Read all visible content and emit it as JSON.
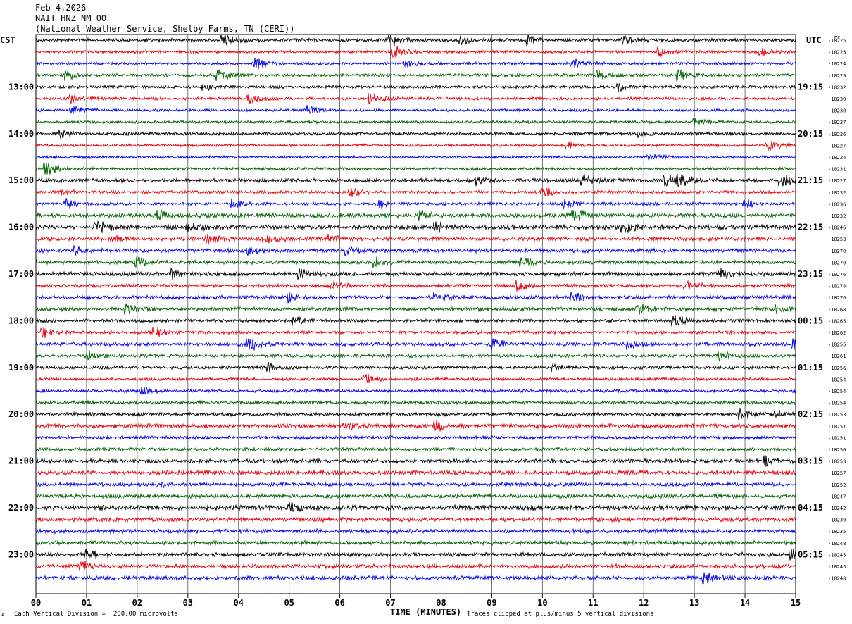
{
  "header": {
    "date": "Feb 4,2026",
    "station": "NAIT HNZ NM 00",
    "network": "(National Weather Service, Shelby Farms, TN (CERI))"
  },
  "corner": {
    "left": "CST",
    "right": "UTC",
    "dc": "DC"
  },
  "footer": {
    "scale_note": "Each Vertical Division =  200.00 microvolts",
    "xlabel": "TIME (MINUTES)",
    "clip_note": "Traces clipped at plus/minus 5 vertical divisions",
    "mark": "A"
  },
  "chart_data": {
    "type": "line",
    "title": "NAIT HNZ NM 00",
    "xlabel": "TIME (MINUTES)",
    "x_ticks": [
      "00",
      "01",
      "02",
      "03",
      "04",
      "05",
      "06",
      "07",
      "08",
      "09",
      "10",
      "11",
      "12",
      "13",
      "14",
      "15"
    ],
    "xlim": [
      0,
      15
    ],
    "trace_colors": [
      "#000000",
      "#e8000b",
      "#0000f0",
      "#006400"
    ],
    "left_time_labels": [
      "13:00",
      "14:00",
      "15:00",
      "16:00",
      "17:00",
      "18:00",
      "19:00",
      "20:00",
      "21:00",
      "22:00",
      "23:00"
    ],
    "right_time_labels": [
      "19:15",
      "20:15",
      "21:15",
      "22:15",
      "23:15",
      "00:15",
      "01:15",
      "02:15",
      "03:15",
      "04:15",
      "05:15"
    ],
    "hour_label_every_n_traces": 4,
    "first_hour_label_trace_index": 4,
    "dc_offsets": [
      "-10225",
      "-10225",
      "-10224",
      "-10229",
      "-10232",
      "-10230",
      "-10230",
      "-10227",
      "-10226",
      "-10227",
      "-10224",
      "-10231",
      "-10227",
      "-10232",
      "-10236",
      "-10232",
      "-10246",
      "-10253",
      "-10270",
      "-10270",
      "-10276",
      "-10278",
      "-10276",
      "-10268",
      "-10265",
      "-10262",
      "-10255",
      "-10261",
      "-10256",
      "-10254",
      "-10254",
      "-10254",
      "-10253",
      "-10251",
      "-10251",
      "-10250",
      "-10253",
      "-10257",
      "-10252",
      "-10247",
      "-10242",
      "-10239",
      "-10235",
      "-10248",
      "-10245",
      "-10245",
      "-10248"
    ],
    "traces": [
      {
        "events": [
          [
            3.7,
            2.2
          ],
          [
            7.0,
            2.8
          ],
          [
            9.7,
            2.0
          ],
          [
            11.6,
            1.8
          ],
          [
            8.4,
            1.5
          ]
        ],
        "noise": 1.1
      },
      {
        "events": [
          [
            7.05,
            4.0
          ],
          [
            12.3,
            1.8
          ],
          [
            14.3,
            1.2
          ]
        ],
        "noise": 0.9
      },
      {
        "events": [
          [
            4.35,
            2.4
          ],
          [
            7.3,
            1.4
          ],
          [
            10.6,
            1.6
          ]
        ],
        "noise": 0.9
      },
      {
        "events": [
          [
            0.6,
            1.6
          ],
          [
            3.6,
            2.6
          ],
          [
            11.1,
            2.0
          ],
          [
            12.7,
            2.4
          ]
        ],
        "noise": 1.0
      },
      {
        "events": [
          [
            3.3,
            1.4
          ],
          [
            11.5,
            1.4
          ]
        ],
        "noise": 1.0
      },
      {
        "events": [
          [
            4.2,
            2.0
          ],
          [
            6.6,
            2.6
          ],
          [
            0.7,
            1.1
          ]
        ],
        "noise": 0.9
      },
      {
        "events": [
          [
            0.7,
            1.4
          ],
          [
            5.4,
            1.4
          ]
        ],
        "noise": 0.9
      },
      {
        "events": [
          [
            13.0,
            1.2
          ]
        ],
        "noise": 0.9
      },
      {
        "events": [
          [
            0.5,
            1.2
          ],
          [
            11.9,
            1.0
          ]
        ],
        "noise": 1.0
      },
      {
        "events": [
          [
            10.5,
            1.2
          ],
          [
            14.45,
            2.2
          ]
        ],
        "noise": 0.9
      },
      {
        "events": [
          [
            12.1,
            1.0
          ]
        ],
        "noise": 0.9
      },
      {
        "events": [
          [
            0.2,
            3.0
          ]
        ],
        "noise": 0.9
      },
      {
        "events": [
          [
            8.7,
            1.8
          ],
          [
            10.8,
            2.0
          ],
          [
            12.4,
            2.4
          ],
          [
            12.7,
            2.8
          ],
          [
            14.7,
            2.2
          ]
        ],
        "noise": 1.2
      },
      {
        "events": [
          [
            0.5,
            1.3
          ],
          [
            6.2,
            1.6
          ],
          [
            10.0,
            2.0
          ]
        ],
        "noise": 1.0
      },
      {
        "events": [
          [
            0.6,
            1.4
          ],
          [
            3.9,
            1.4
          ],
          [
            6.8,
            1.2
          ],
          [
            10.4,
            1.8
          ],
          [
            14.0,
            1.4
          ]
        ],
        "noise": 1.0
      },
      {
        "events": [
          [
            2.4,
            2.0
          ],
          [
            7.6,
            1.6
          ],
          [
            10.6,
            3.4
          ]
        ],
        "noise": 1.4
      },
      {
        "events": [
          [
            1.2,
            3.0
          ],
          [
            7.9,
            2.6
          ],
          [
            11.6,
            2.4
          ],
          [
            3.0,
            1.4
          ]
        ],
        "noise": 1.5
      },
      {
        "events": [
          [
            3.4,
            2.2
          ],
          [
            4.5,
            1.8
          ],
          [
            5.8,
            1.8
          ],
          [
            1.5,
            1.3
          ]
        ],
        "noise": 1.2
      },
      {
        "events": [
          [
            0.8,
            1.4
          ],
          [
            6.1,
            2.0
          ],
          [
            4.2,
            1.4
          ]
        ],
        "noise": 1.3
      },
      {
        "events": [
          [
            2.0,
            1.6
          ],
          [
            6.7,
            1.6
          ],
          [
            9.6,
            1.4
          ]
        ],
        "noise": 1.2
      },
      {
        "events": [
          [
            5.2,
            1.6
          ],
          [
            13.5,
            2.4
          ],
          [
            2.7,
            1.2
          ]
        ],
        "noise": 1.3
      },
      {
        "events": [
          [
            9.5,
            2.4
          ],
          [
            12.8,
            1.8
          ],
          [
            5.8,
            1.2
          ]
        ],
        "noise": 1.1
      },
      {
        "events": [
          [
            7.9,
            2.2
          ],
          [
            10.6,
            2.0
          ],
          [
            5.0,
            1.4
          ]
        ],
        "noise": 1.2
      },
      {
        "events": [
          [
            1.8,
            1.6
          ],
          [
            11.9,
            2.0
          ],
          [
            14.6,
            1.4
          ]
        ],
        "noise": 1.2
      },
      {
        "events": [
          [
            5.1,
            1.6
          ],
          [
            12.6,
            2.6
          ]
        ],
        "noise": 1.0
      },
      {
        "events": [
          [
            2.3,
            2.2
          ],
          [
            0.1,
            2.4
          ]
        ],
        "noise": 1.0
      },
      {
        "events": [
          [
            4.2,
            3.0
          ],
          [
            9.0,
            2.0
          ],
          [
            11.7,
            1.8
          ],
          [
            14.9,
            2.4
          ]
        ],
        "noise": 1.2
      },
      {
        "events": [
          [
            1.0,
            1.6
          ],
          [
            13.5,
            2.0
          ]
        ],
        "noise": 1.1
      },
      {
        "events": [
          [
            4.6,
            1.6
          ],
          [
            10.2,
            1.0
          ]
        ],
        "noise": 1.1
      },
      {
        "events": [
          [
            6.5,
            1.8
          ]
        ],
        "noise": 0.9
      },
      {
        "events": [
          [
            2.1,
            1.2
          ]
        ],
        "noise": 1.0
      },
      {
        "events": [],
        "noise": 1.1
      },
      {
        "events": [
          [
            13.9,
            2.2
          ],
          [
            14.6,
            1.4
          ]
        ],
        "noise": 1.1
      },
      {
        "events": [
          [
            6.1,
            1.6
          ],
          [
            7.9,
            2.0
          ]
        ],
        "noise": 1.3
      },
      {
        "events": [],
        "noise": 1.1
      },
      {
        "events": [],
        "noise": 1.1
      },
      {
        "events": [
          [
            14.4,
            1.8
          ]
        ],
        "noise": 1.3
      },
      {
        "events": [],
        "noise": 1.4
      },
      {
        "events": [
          [
            2.4,
            1.2
          ]
        ],
        "noise": 1.2
      },
      {
        "events": [],
        "noise": 1.3
      },
      {
        "events": [
          [
            5.0,
            1.4
          ]
        ],
        "noise": 1.6
      },
      {
        "events": [],
        "noise": 1.4
      },
      {
        "events": [],
        "noise": 1.3
      },
      {
        "events": [],
        "noise": 1.3
      },
      {
        "events": [
          [
            1.0,
            1.8
          ],
          [
            14.9,
            1.8
          ]
        ],
        "noise": 1.3
      },
      {
        "events": [
          [
            0.9,
            1.6
          ]
        ],
        "noise": 1.3
      },
      {
        "events": [
          [
            13.2,
            1.8
          ]
        ],
        "noise": 1.3
      }
    ]
  }
}
